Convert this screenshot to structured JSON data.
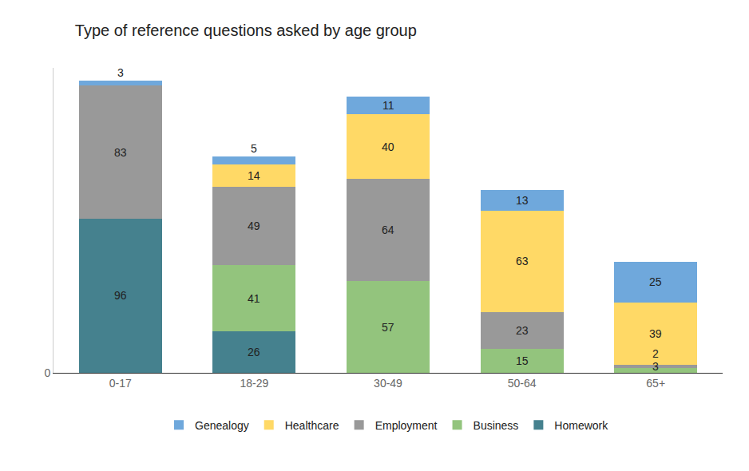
{
  "chart_data": {
    "type": "bar",
    "title": "Type of reference questions asked by age group",
    "categories": [
      "0-17",
      "18-29",
      "30-49",
      "50-64",
      "65+"
    ],
    "series": [
      {
        "name": "Genealogy",
        "color": "#6fa8dc",
        "values": [
          3,
          5,
          11,
          13,
          25
        ]
      },
      {
        "name": "Healthcare",
        "color": "#ffd966",
        "values": [
          null,
          14,
          40,
          63,
          39
        ]
      },
      {
        "name": "Employment",
        "color": "#999999",
        "values": [
          83,
          49,
          64,
          23,
          2
        ]
      },
      {
        "name": "Business",
        "color": "#93c47d",
        "values": [
          null,
          41,
          57,
          15,
          3
        ]
      },
      {
        "name": "Homework",
        "color": "#45818e",
        "values": [
          96,
          26,
          null,
          null,
          null
        ]
      }
    ],
    "ylim": [
      0,
      190
    ],
    "yticks": [
      0
    ],
    "grid": false,
    "stacked": true,
    "data_labels": true,
    "legend": "bottom"
  }
}
